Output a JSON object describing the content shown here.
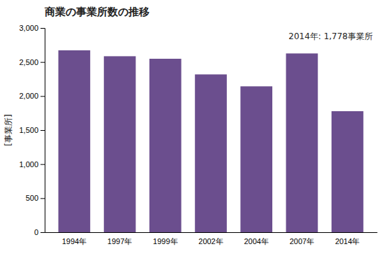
{
  "chart_data": {
    "type": "bar",
    "title": "商業の事業所数の推移",
    "ylabel": "[事業所]",
    "annotation": "2014年: 1,778事業所",
    "categories": [
      "1994年",
      "1997年",
      "1999年",
      "2002年",
      "2004年",
      "2007年",
      "2014年"
    ],
    "values": [
      2672,
      2585,
      2548,
      2318,
      2143,
      2626,
      1778
    ],
    "color": "#6B4E8E",
    "ylim": [
      0,
      3000
    ],
    "yticks": [
      0,
      500,
      {
        "value": 1000,
        "label": "1,000"
      },
      {
        "value": 1500,
        "label": "1,500"
      },
      {
        "value": 2000,
        "label": "2,000"
      },
      {
        "value": 2500,
        "label": "2,500"
      },
      {
        "value": 3000,
        "label": "3,000"
      }
    ],
    "grid": false
  }
}
